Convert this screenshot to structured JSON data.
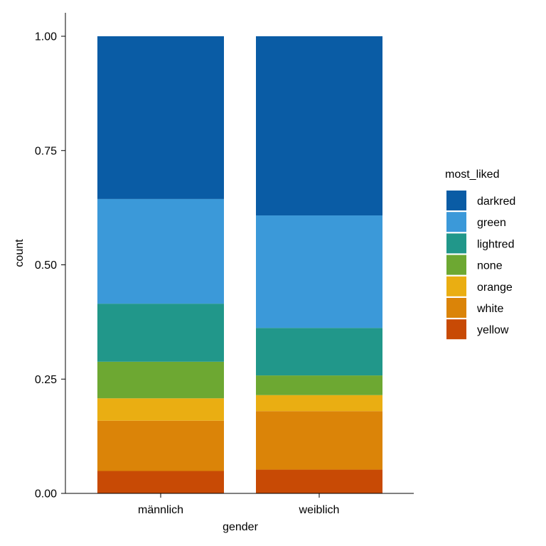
{
  "chart_data": {
    "type": "bar",
    "stacked": true,
    "xlabel": "gender",
    "ylabel": "count",
    "categories": [
      "männlich",
      "weiblich"
    ],
    "ylim": [
      0,
      1.05
    ],
    "yticks": [
      "0.00",
      "0.25",
      "0.50",
      "0.75",
      "1.00"
    ],
    "ytick_values": [
      0,
      0.25,
      0.5,
      0.75,
      1.0
    ],
    "legend": {
      "title": "most_liked",
      "position": "right"
    },
    "grid": false,
    "series": [
      {
        "name": "yellow",
        "color": "#C84A05",
        "values": [
          0.049,
          0.052
        ]
      },
      {
        "name": "white",
        "color": "#DB8408",
        "values": [
          0.11,
          0.128
        ]
      },
      {
        "name": "orange",
        "color": "#EAAE12",
        "values": [
          0.049,
          0.035
        ]
      },
      {
        "name": "none",
        "color": "#6DA832",
        "values": [
          0.08,
          0.043
        ]
      },
      {
        "name": "lightred",
        "color": "#21978A",
        "values": [
          0.127,
          0.104
        ]
      },
      {
        "name": "green",
        "color": "#3B99D9",
        "values": [
          0.229,
          0.246
        ]
      },
      {
        "name": "darkred",
        "color": "#0A5CA5",
        "values": [
          0.356,
          0.392
        ]
      }
    ]
  }
}
